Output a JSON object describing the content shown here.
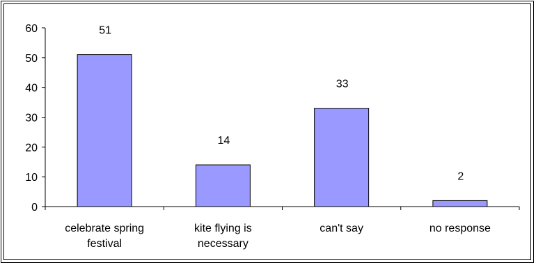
{
  "chart_data": {
    "type": "bar",
    "categories": [
      [
        "celebrate spring",
        "festival"
      ],
      [
        "kite flying is",
        "necessary"
      ],
      [
        "can't say"
      ],
      [
        "no response"
      ]
    ],
    "values": [
      51,
      14,
      33,
      2
    ],
    "data_labels": [
      "51",
      "14",
      "33",
      "2"
    ],
    "yticks": [
      "0",
      "10",
      "20",
      "30",
      "40",
      "50",
      "60"
    ],
    "ylim": [
      0,
      60
    ],
    "title": "",
    "xlabel": "",
    "ylabel": "",
    "bar_color": "#9999ff",
    "grid": false,
    "legend": "none"
  }
}
